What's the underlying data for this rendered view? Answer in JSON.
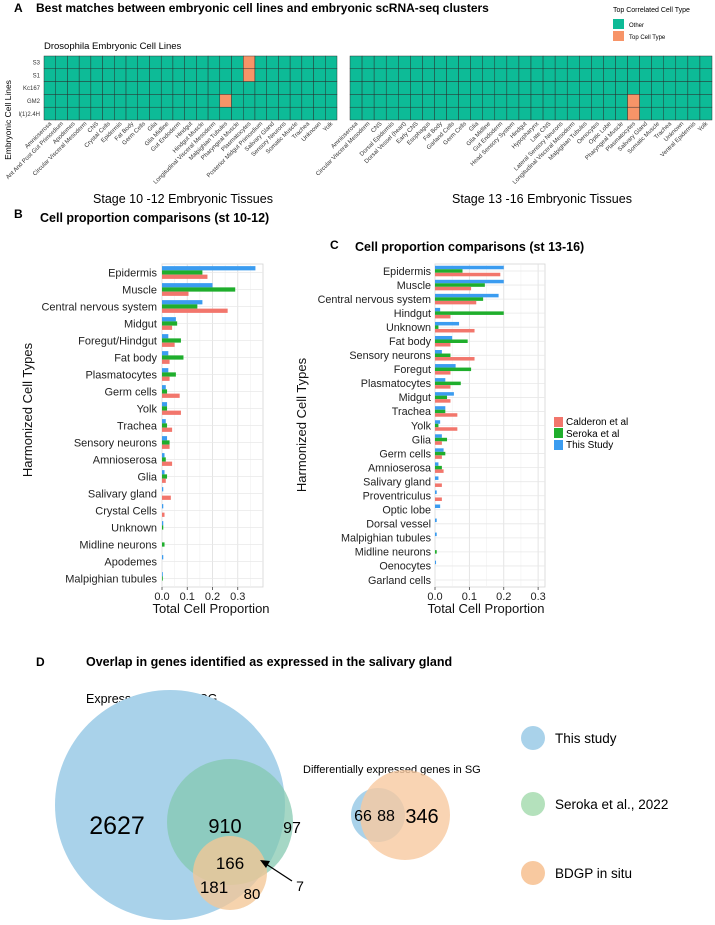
{
  "chart_data": [
    {
      "panel": "A",
      "type": "heatmap",
      "title": "Best matches between embryonic cell lines and embryonic scRNA-seq clusters",
      "subtitle": "Drosophila Embryonic Cell Lines",
      "ylabel": "Embryonic Cell Lines",
      "rows": [
        "S3",
        "S1",
        "Kc167",
        "GM2",
        "l(1)2.4H"
      ],
      "legend": {
        "title": "Top Correlated Cell Type",
        "entries": [
          {
            "label": "Other",
            "color": "#0dbb97"
          },
          {
            "label": "Top Cell Type",
            "color": "#f79468"
          }
        ]
      },
      "left": {
        "xlabel": "Stage 10 -12 Embryonic Tissues",
        "columns": [
          "Amnioserosa",
          "Ant And Post Gut Primordium",
          "Apodemes",
          "Circular Visceral Mesoderm",
          "CNS",
          "Crystal Cells",
          "Epidermis",
          "Fat Body",
          "Germ Cells",
          "Glia",
          "Glia Midline",
          "Gut Endoderm",
          "Hindgut",
          "Hindgut Muscle",
          "Longitudinal Visceral Mesoderm",
          "Malpighian Tubules",
          "Pharyngeal Muscle",
          "Plasmatocytes",
          "Posterior Midgut Primordium",
          "Salivary Gland",
          "Sensory Neurons",
          "Somatic Muscle",
          "Trachea",
          "Unknown",
          "Yolk"
        ],
        "top_cells": [
          [
            0,
            17
          ],
          [
            1,
            17
          ],
          [
            3,
            15
          ]
        ]
      },
      "right": {
        "xlabel": "Stage 13 -16 Embryonic Tissues",
        "columns": [
          "Amnioserosa",
          "Circular Visceral Mesoderm",
          "CNS",
          "Dorsal Epidermis",
          "Dorsal Vessel (heart)",
          "Early CNS",
          "Esophagus",
          "Fat Body",
          "Garland Cells",
          "Germ Cells",
          "Glia",
          "Glia Midline",
          "Gut Endoderm",
          "Head Sensory System",
          "Hindgut",
          "Hypopharynx",
          "Late CNS",
          "Lateral Sensory Neurons",
          "Longitudinal Visceral Mesoderm",
          "Malpighian Tubules",
          "Oenocytes",
          "Optic Lobe",
          "Pharyngeal Muscle",
          "Plasmatocytes",
          "Salivary Gland",
          "Somatic Muscle",
          "Trachea",
          "Unknown",
          "Ventral Epidermis",
          "Yolk"
        ],
        "top_cells": [
          [
            3,
            23
          ],
          [
            4,
            23
          ]
        ]
      }
    },
    {
      "panel": "B",
      "type": "bar",
      "orientation": "horizontal",
      "title": "Cell proportion comparisons (st 10-12)",
      "xlabel": "Total Cell Proportion",
      "ylabel": "Harmonized Cell Types",
      "xlim": [
        0,
        0.4
      ],
      "xticks": [
        0.0,
        0.1,
        0.2,
        0.3
      ],
      "xtick_labels": [
        "0.0",
        "0.1",
        "0.2",
        "0.3"
      ],
      "categories": [
        "Epidermis",
        "Muscle",
        "Central nervous system",
        "Midgut",
        "Foregut/Hindgut",
        "Fat body",
        "Plasmatocytes",
        "Germ cells",
        "Yolk",
        "Trachea",
        "Sensory neurons",
        "Amnioserosa",
        "Glia",
        "Salivary gland",
        "Crystal Cells",
        "Unknown",
        "Midline neurons",
        "Apodemes",
        "Malpighian tubules"
      ],
      "series": [
        {
          "name": "This Study",
          "color": "#3b9cf0",
          "values": [
            0.37,
            0.2,
            0.16,
            0.055,
            0.025,
            0.025,
            0.025,
            0.015,
            0.02,
            0.015,
            0.02,
            0.01,
            0.01,
            0.005,
            0.005,
            0.005,
            0.0,
            0.005,
            0.003
          ]
        },
        {
          "name": "Seroka et al",
          "color": "#1fae2c",
          "values": [
            0.16,
            0.29,
            0.14,
            0.06,
            0.075,
            0.085,
            0.055,
            0.02,
            0.02,
            0.02,
            0.03,
            0.015,
            0.02,
            0.0,
            0.0,
            0.005,
            0.01,
            0.0,
            0.003
          ]
        },
        {
          "name": "Calderon et al",
          "color": "#f2766c",
          "values": [
            0.18,
            0.105,
            0.26,
            0.04,
            0.05,
            0.03,
            0.03,
            0.07,
            0.075,
            0.04,
            0.03,
            0.04,
            0.015,
            0.035,
            0.01,
            0.0,
            0.0,
            0.0,
            0.0
          ]
        }
      ]
    },
    {
      "panel": "C",
      "type": "bar",
      "orientation": "horizontal",
      "title": "Cell proportion comparisons (st 13-16)",
      "xlabel": "Total Cell Proportion",
      "ylabel": "Harmonized Cell Types",
      "xlim": [
        0,
        0.32
      ],
      "xticks": [
        0.0,
        0.1,
        0.2,
        0.3
      ],
      "xtick_labels": [
        "0.0",
        "0.1",
        "0.2",
        "0.3"
      ],
      "legend": [
        "Calderon et al",
        "Seroka et al",
        "This Study"
      ],
      "categories": [
        "Epidermis",
        "Muscle",
        "Central nervous system",
        "Hindgut",
        "Unknown",
        "Fat body",
        "Sensory neurons",
        "Foregut",
        "Plasmatocytes",
        "Midgut",
        "Trachea",
        "Yolk",
        "Glia",
        "Germ cells",
        "Amnioserosa",
        "Salivary gland",
        "Proventriculus",
        "Optic lobe",
        "Dorsal vessel",
        "Malpighian tubules",
        "Midline neurons",
        "Oenocytes",
        "Garland cells"
      ],
      "series": [
        {
          "name": "This Study",
          "color": "#3b9cf0",
          "values": [
            0.2,
            0.2,
            0.185,
            0.015,
            0.07,
            0.05,
            0.02,
            0.06,
            0.03,
            0.055,
            0.03,
            0.015,
            0.02,
            0.025,
            0.01,
            0.01,
            0.005,
            0.015,
            0.005,
            0.005,
            0.0,
            0.003,
            0.0
          ]
        },
        {
          "name": "Seroka et al",
          "color": "#1fae2c",
          "values": [
            0.08,
            0.145,
            0.14,
            0.2,
            0.01,
            0.095,
            0.045,
            0.105,
            0.075,
            0.035,
            0.03,
            0.01,
            0.035,
            0.03,
            0.02,
            0.0,
            0.0,
            0.0,
            0.0,
            0.0,
            0.005,
            0.0,
            0.0
          ]
        },
        {
          "name": "Calderon et al",
          "color": "#f2766c",
          "values": [
            0.19,
            0.105,
            0.12,
            0.045,
            0.115,
            0.045,
            0.115,
            0.045,
            0.045,
            0.045,
            0.065,
            0.065,
            0.02,
            0.02,
            0.025,
            0.02,
            0.02,
            0.0,
            0.0,
            0.0,
            0.0,
            0.0,
            0.0
          ]
        }
      ]
    },
    {
      "panel": "D",
      "type": "venn",
      "title": "Overlap in genes identified as expressed in the salivary gland",
      "sets": [
        {
          "name": "This study",
          "color": "#a9d2ea"
        },
        {
          "name": "Seroka et al., 2022",
          "color": "#b4e1bc"
        },
        {
          "name": "BDGP in situ",
          "color": "#f8c9a0"
        }
      ],
      "expressed": {
        "label": "Expressed genes in SG",
        "this_only": 2627,
        "this_seroka": 910,
        "seroka_only": 97,
        "all_three": 166,
        "this_bdgp": 181,
        "bdgp_only": 80,
        "seroka_bdgp": 7
      },
      "differential": {
        "label": "Differentially expressed genes in SG",
        "this_only": 66,
        "overlap": 88,
        "bdgp_only": 346
      }
    }
  ]
}
